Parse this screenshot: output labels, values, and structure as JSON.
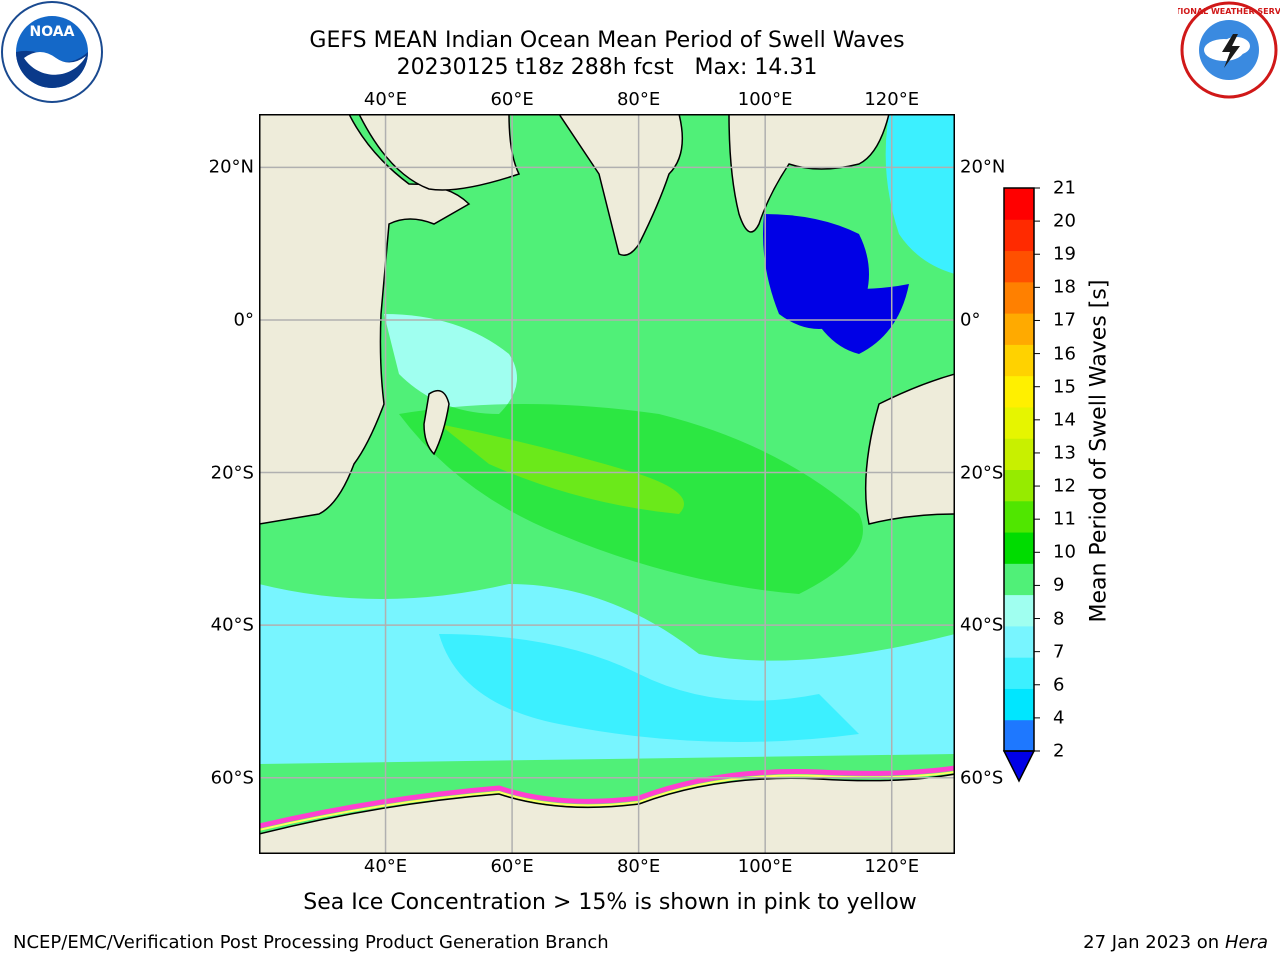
{
  "title_line1": "GEFS MEAN Indian Ocean Mean Period of Swell Waves",
  "title_line2": "20230125 t18z 288h fcst   Max: 14.31",
  "lon_ticks": [
    "40°E",
    "60°E",
    "80°E",
    "100°E",
    "120°E"
  ],
  "lon_values": [
    40,
    60,
    80,
    100,
    120
  ],
  "lat_ticks": [
    "20°N",
    "0°",
    "20°S",
    "40°S",
    "60°S"
  ],
  "lat_values": [
    20,
    0,
    -20,
    -40,
    -60
  ],
  "map_extent": {
    "lon_min": 20,
    "lon_max": 130,
    "lat_min": -70,
    "lat_max": 27
  },
  "colorbar": {
    "title": "Mean Period of Swell Waves [s]",
    "labels": [
      "2",
      "4",
      "6",
      "7",
      "8",
      "9",
      "10",
      "11",
      "12",
      "13",
      "14",
      "15",
      "16",
      "17",
      "18",
      "19",
      "20",
      "21"
    ],
    "colors": [
      "#0000e6",
      "#1e78ff",
      "#00e6ff",
      "#3cf0ff",
      "#78f5ff",
      "#a0fff0",
      "#50f078",
      "#00dc00",
      "#50e600",
      "#96eb00",
      "#c8f000",
      "#e6f500",
      "#fff000",
      "#ffd200",
      "#ffaa00",
      "#ff8000",
      "#ff5000",
      "#ff2a00",
      "#ff0000"
    ]
  },
  "map_colors": {
    "land": "#eeecda",
    "grid": "#b0b0b0",
    "ice_pink": "#ff40d0",
    "ice_yellow": "#ffff60"
  },
  "note": "Sea Ice Concentration > 15% is shown in pink to yellow",
  "footer_left": "NCEP/EMC/Verification Post Processing Product Generation Branch",
  "footer_right_text": "27 Jan 2023 on ",
  "footer_right_italic": "Hera",
  "logos": {
    "left": "NOAA",
    "right": "NATIONAL WEATHER SERVICE"
  }
}
